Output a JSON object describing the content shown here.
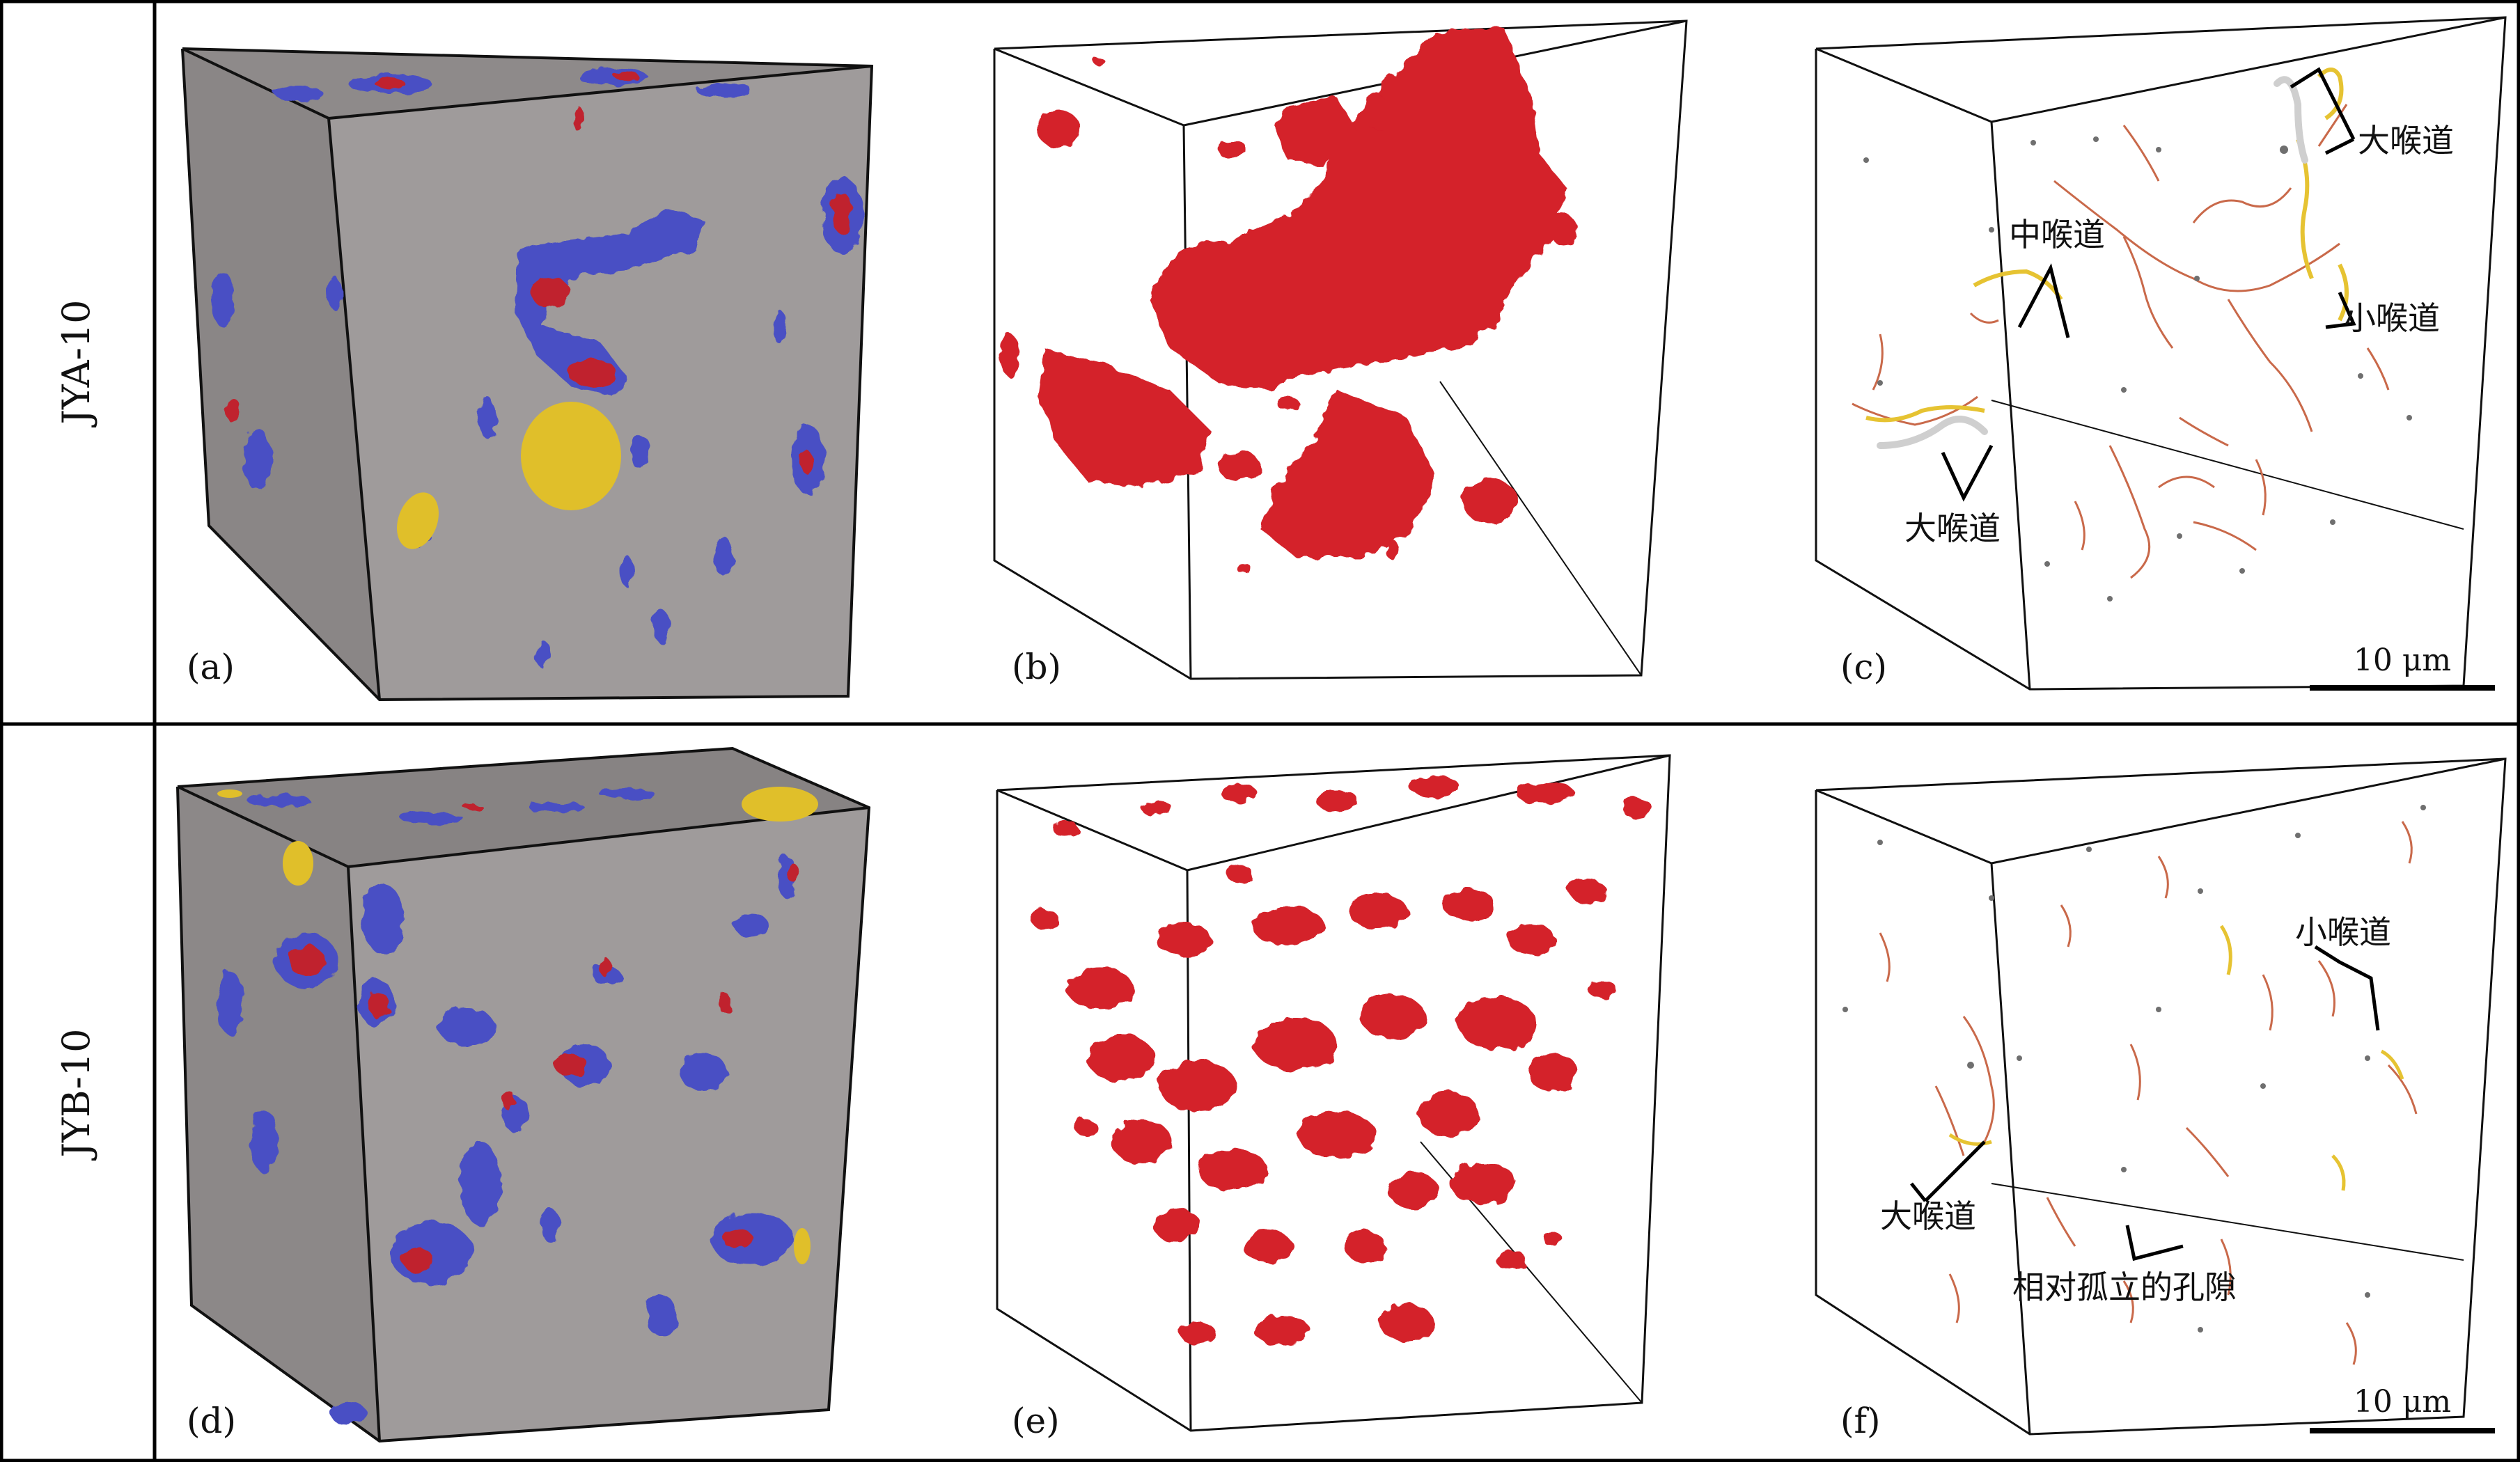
{
  "rows": [
    {
      "label": "JYA-10",
      "panels": [
        {
          "label": "(a)"
        },
        {
          "label": "(b)"
        },
        {
          "label": "(c)",
          "scale_bar": "10 μm",
          "annotations": [
            "大喉道",
            "中喉道",
            "小喉道",
            "大喉道"
          ]
        }
      ]
    },
    {
      "label": "JYB-10",
      "panels": [
        {
          "label": "(d)"
        },
        {
          "label": "(e)"
        },
        {
          "label": "(f)",
          "scale_bar": "10 μm",
          "annotations": [
            "小喉道",
            "大喉道",
            "相对孤立的孔隙"
          ]
        }
      ]
    }
  ],
  "colors": {
    "rock_matrix": "#9e9a9a",
    "pore_blue": "#4a4fc4",
    "pore_red": "#c0242e",
    "yellow_phase": "#e0bf2a",
    "pore_render_red": "#d4202a",
    "throat_orange": "#d47a3a",
    "throat_yellow": "#e6c332",
    "throat_white": "#cfcfcf"
  }
}
